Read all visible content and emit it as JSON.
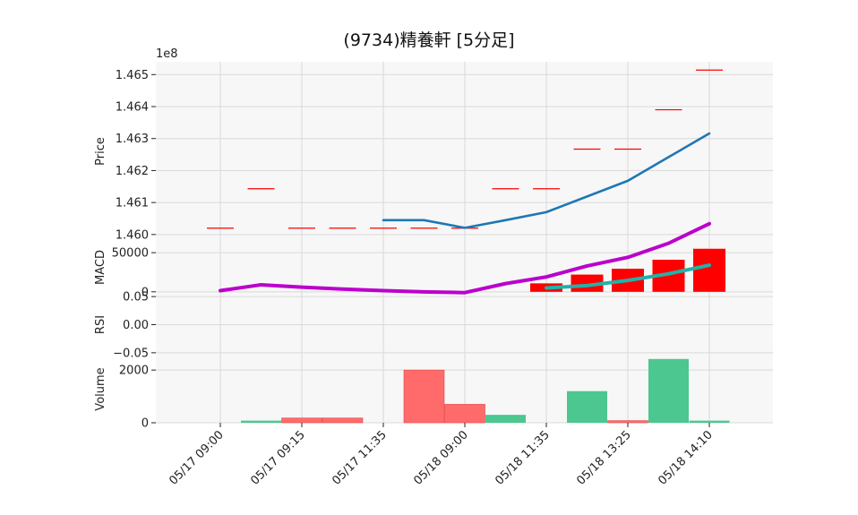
{
  "title": "(9734)精養軒  [5分足]",
  "chart_data": {
    "type": "candlestick",
    "title": "(9734)精養軒  [5分足]",
    "x_tick_labels": [
      "05/17 09:00",
      "05/17 09:15",
      "05/17 11:35",
      "05/18 09:00",
      "05/18 11:35",
      "05/18 13:25",
      "05/18 14:10"
    ],
    "x_tick_indices": [
      0,
      2,
      4,
      6,
      8,
      10,
      12
    ],
    "colors": {
      "up_candle": "#ff0000",
      "ma_line": "#1f77b4",
      "macd_line": "#bb00cc",
      "signal_line": "#20b2aa",
      "macd_hist": "#ff0000",
      "volume_up": "#ff6b6b",
      "volume_down": "#4cc790",
      "grid": "#d9d9d9",
      "panel_bg": "#f7f7f7"
    },
    "price_panel": {
      "ylabel": "Price",
      "offset_label": "1e8",
      "ylim": [
        1.4598,
        1.4654
      ],
      "yticks": [
        1.46,
        1.461,
        1.462,
        1.463,
        1.464,
        1.465
      ],
      "ytick_labels": [
        "1.460",
        "1.461",
        "1.462",
        "1.463",
        "1.464",
        "1.465"
      ],
      "candles": [
        1.4602,
        1.46143,
        1.4602,
        1.4602,
        1.4602,
        1.4602,
        1.4602,
        1.46143,
        1.46143,
        1.46267,
        1.46267,
        1.4639,
        1.46514
      ],
      "ma": [
        null,
        null,
        null,
        null,
        1.46045,
        1.46045,
        1.46021,
        1.46045,
        1.4607,
        1.46119,
        1.46168,
        1.46242,
        1.46316
      ]
    },
    "macd_panel": {
      "ylabel": "MACD",
      "ylim": [
        -2500,
        65000
      ],
      "yticks": [
        0,
        50000
      ],
      "ytick_labels": [
        "0",
        "50000"
      ],
      "macd": [
        1500,
        9000,
        6000,
        3500,
        1500,
        0,
        -1000,
        10500,
        19000,
        33000,
        44000,
        62000,
        87000
      ],
      "signal": [
        null,
        null,
        null,
        null,
        null,
        null,
        null,
        null,
        5000,
        8000,
        14500,
        23000,
        34000
      ],
      "hist": [
        null,
        null,
        null,
        null,
        null,
        null,
        null,
        null,
        10800,
        22000,
        29500,
        41000,
        55000
      ]
    },
    "rsi_panel": {
      "ylabel": "RSI",
      "ylim": [
        -0.055,
        0.055
      ],
      "yticks": [
        -0.05,
        0.0,
        0.05
      ],
      "ytick_labels": [
        "−0.05",
        "0.00",
        "0.05"
      ]
    },
    "volume_panel": {
      "ylabel": "Volume",
      "ylim": [
        0,
        2550
      ],
      "yticks": [
        0,
        2000
      ],
      "ytick_labels": [
        "0",
        "2000"
      ],
      "bars": [
        {
          "v": 0,
          "up": false
        },
        {
          "v": 80,
          "up": false
        },
        {
          "v": 180,
          "up": true
        },
        {
          "v": 180,
          "up": true
        },
        {
          "v": 0,
          "up": true
        },
        {
          "v": 2000,
          "up": true
        },
        {
          "v": 700,
          "up": true
        },
        {
          "v": 300,
          "up": false
        },
        {
          "v": 0,
          "up": false
        },
        {
          "v": 1200,
          "up": false
        },
        {
          "v": 80,
          "up": true
        },
        {
          "v": 2420,
          "up": false
        },
        {
          "v": 80,
          "up": false
        }
      ]
    }
  }
}
